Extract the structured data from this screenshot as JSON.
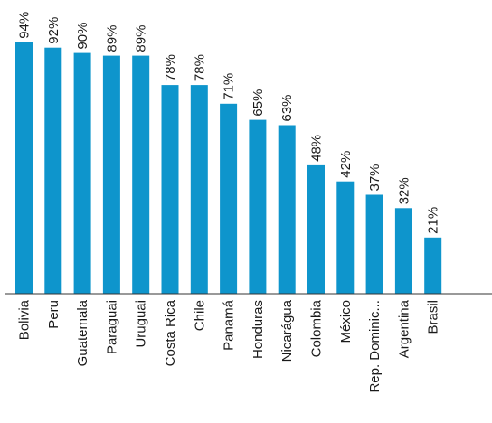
{
  "chart_data": {
    "type": "bar",
    "orientation": "vertical",
    "categories": [
      "Bolivia",
      "Peru",
      "Guatemala",
      "Paraguai",
      "Uruguai",
      "Costa Rica",
      "Chile",
      "Panamá",
      "Honduras",
      "Nicarágua",
      "Colombia",
      "México",
      "Rep. Dominic...",
      "Argentina",
      "Brasil"
    ],
    "values": [
      94,
      92,
      90,
      89,
      89,
      78,
      78,
      71,
      65,
      63,
      48,
      42,
      37,
      32,
      21
    ],
    "value_labels": [
      "94%",
      "92%",
      "90%",
      "89%",
      "89%",
      "78%",
      "78%",
      "71%",
      "65%",
      "63%",
      "48%",
      "42%",
      "37%",
      "32%",
      "21%"
    ],
    "value_suffix": "%",
    "ylim": [
      0,
      100
    ],
    "grid": false,
    "legend": "none",
    "title": "",
    "xlabel": "",
    "ylabel": "",
    "bar_color": "#0e95cc",
    "axis_color": "#333333"
  }
}
